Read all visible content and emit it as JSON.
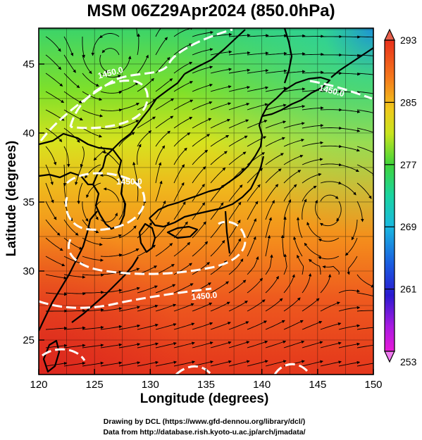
{
  "title": "MSM 06Z29Apr2024 (850.0hPa)",
  "x_axis": {
    "label": "Longitude (degrees)",
    "ticks": [
      "120",
      "125",
      "130",
      "135",
      "140",
      "145",
      "150"
    ]
  },
  "y_axis": {
    "label": "Latitude  (degrees)",
    "ticks": [
      "45",
      "40",
      "35",
      "30",
      "25"
    ]
  },
  "colorbar": {
    "ticks": [
      "293",
      "285",
      "277",
      "269",
      "261",
      "253"
    ]
  },
  "contour_labels": [
    "1450.0",
    "1450.0",
    "1450.0",
    "1450.0"
  ],
  "credits": {
    "line1": "Drawing by DCL (https://www.gfd-dennou.org/library/dcl/)",
    "line2": "Data from http://database.rish.kyoto-u.ac.jp/arch/jmadata/"
  },
  "colors": {
    "warm": "#e83a1c",
    "orange": "#f58a1a",
    "yellow": "#e8e21a",
    "green": "#2fd44a",
    "cyan": "#1ad4c8",
    "blue": "#1a3cd8",
    "magenta": "#e01ae0",
    "coast": "#000000",
    "contour": "#ffffff"
  },
  "map": {
    "lon_range": [
      120,
      150
    ],
    "lat_range": [
      22.5,
      47.6
    ]
  }
}
